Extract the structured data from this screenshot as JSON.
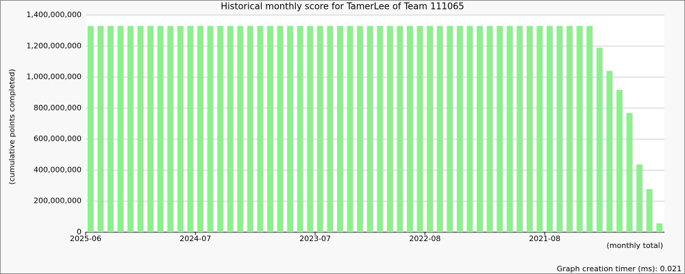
{
  "chart_data": {
    "type": "bar",
    "title": "Historical monthly score for TamerLee of Team 111065",
    "y_label": "(cumulative points completed)",
    "x_label": "(monthly total)",
    "footer": "Graph creation timer (ms): 0.021",
    "color": "#90ee90",
    "grid": true,
    "categories": [
      "2025-06",
      null,
      null,
      null,
      null,
      null,
      null,
      null,
      null,
      null,
      null,
      "2024-07",
      null,
      null,
      null,
      null,
      null,
      null,
      null,
      null,
      null,
      null,
      null,
      "2023-07",
      null,
      null,
      null,
      null,
      null,
      null,
      null,
      null,
      null,
      null,
      "2022-08",
      null,
      null,
      null,
      null,
      null,
      null,
      null,
      null,
      null,
      null,
      null,
      "2021-08",
      null,
      null,
      null,
      null,
      null,
      null,
      null,
      null,
      null,
      null,
      null
    ],
    "values": [
      1330000000,
      1330000000,
      1330000000,
      1330000000,
      1330000000,
      1330000000,
      1330000000,
      1330000000,
      1330000000,
      1330000000,
      1330000000,
      1330000000,
      1330000000,
      1330000000,
      1330000000,
      1330000000,
      1330000000,
      1330000000,
      1330000000,
      1330000000,
      1330000000,
      1330000000,
      1330000000,
      1330000000,
      1330000000,
      1330000000,
      1330000000,
      1330000000,
      1330000000,
      1330000000,
      1330000000,
      1330000000,
      1330000000,
      1330000000,
      1330000000,
      1330000000,
      1330000000,
      1330000000,
      1330000000,
      1330000000,
      1330000000,
      1330000000,
      1330000000,
      1330000000,
      1330000000,
      1330000000,
      1330000000,
      1330000000,
      1330000000,
      1330000000,
      1330000000,
      1190000000,
      1040000000,
      918000000,
      768000000,
      437000000,
      278000000,
      57000000
    ],
    "ylim": [
      0,
      1400000000
    ],
    "yticks": [
      0,
      {
        "value": 200000000,
        "label": "200,000,000"
      },
      {
        "value": 400000000,
        "label": "400,000,000"
      },
      {
        "value": 600000000,
        "label": "600,000,000"
      },
      {
        "value": 800000000,
        "label": "800,000,000"
      },
      {
        "value": 1000000000,
        "label": "1,000,000,000"
      },
      {
        "value": 1200000000,
        "label": "1,200,000,000"
      },
      {
        "value": 1400000000,
        "label": "1,400,000,000"
      }
    ]
  }
}
